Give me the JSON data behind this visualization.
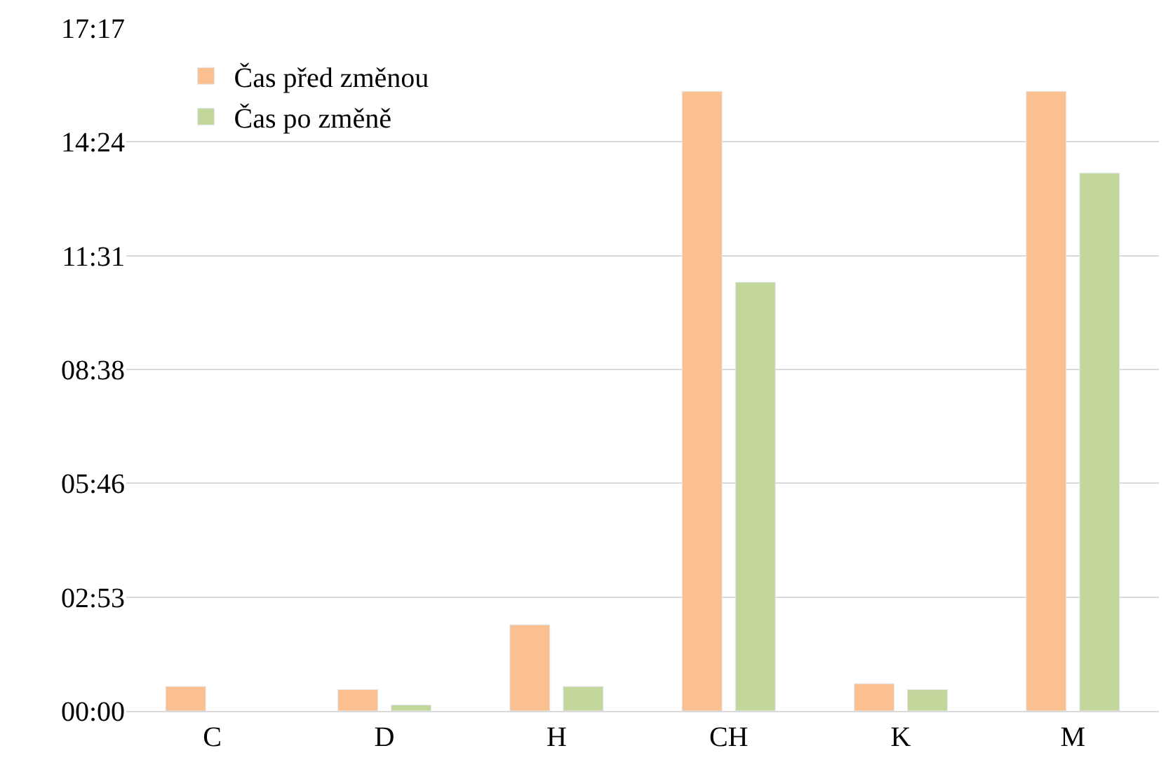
{
  "chart_data": {
    "type": "bar",
    "categories": [
      "C",
      "D",
      "H",
      "CH",
      "K",
      "M"
    ],
    "series": [
      {
        "name": "Čas před změnou",
        "color": "#fac090",
        "values": [
          0.62,
          0.54,
          2.18,
          15.68,
          0.69,
          15.68
        ]
      },
      {
        "name": "Čas po změně",
        "color": "#c3d69b",
        "values": [
          null,
          0.15,
          0.62,
          10.85,
          0.54,
          13.61
        ]
      }
    ],
    "ylim": [
      0,
      17.28
    ],
    "yticks": [
      {
        "value": 0,
        "label": "00:00"
      },
      {
        "value": 2.88,
        "label": "02:53"
      },
      {
        "value": 5.76,
        "label": "05:46"
      },
      {
        "value": 8.64,
        "label": "08:38"
      },
      {
        "value": 11.52,
        "label": "11:31"
      },
      {
        "value": 14.4,
        "label": "14:24"
      },
      {
        "value": 17.28,
        "label": "17:17"
      }
    ],
    "grid": "y",
    "legend": "top left"
  }
}
